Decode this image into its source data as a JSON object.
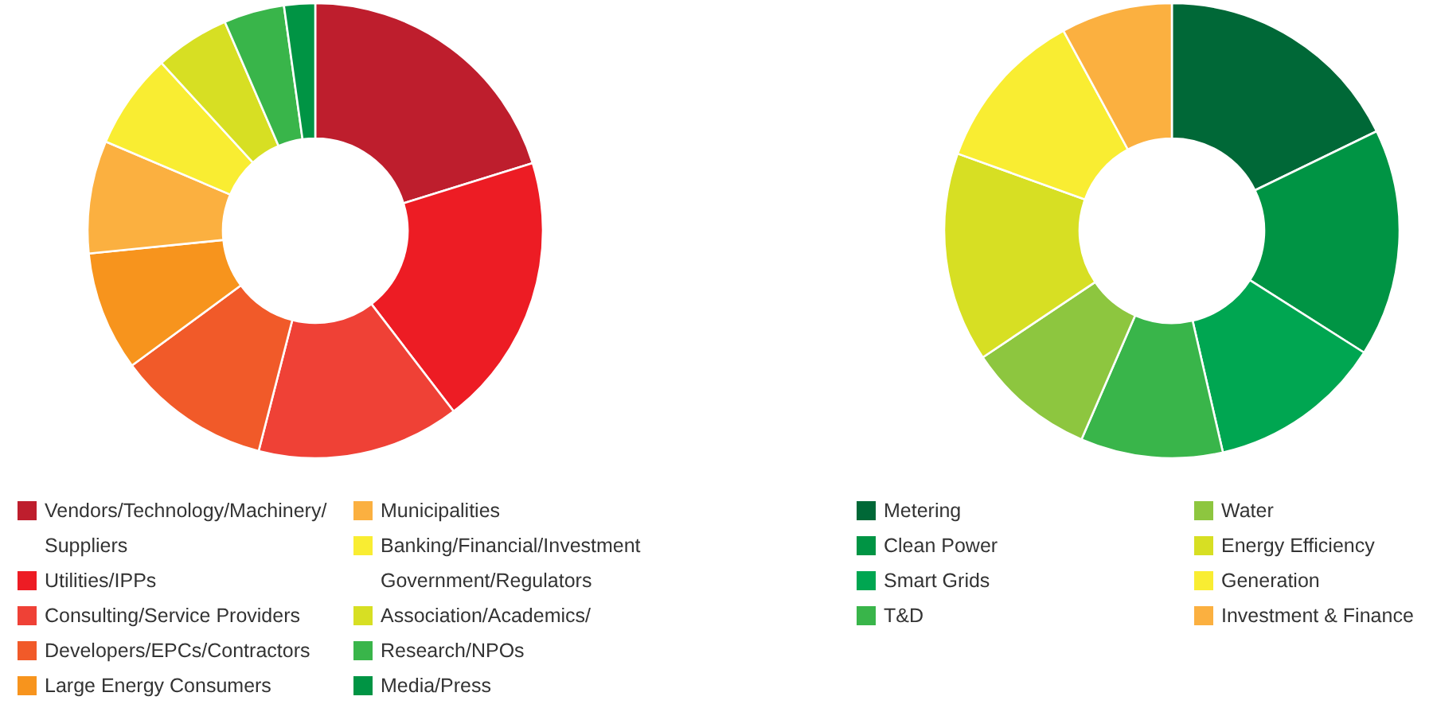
{
  "chart_data": [
    {
      "type": "donut",
      "categories": [
        "Vendors/Technology/Machinery/Suppliers",
        "Utilities/IPPs",
        "Consulting/Service Providers",
        "Developers/EPCs/Contractors",
        "Large Energy Consumers",
        "Municipalities",
        "Banking/Financial/Investment Government/Regulators",
        "Association/Academics/",
        "Research/NPOs",
        "Media/Press"
      ],
      "values": [
        20.2,
        19.4,
        14.4,
        10.9,
        8.5,
        8.0,
        6.8,
        5.3,
        4.3,
        2.2
      ],
      "colors": [
        "#be1e2d",
        "#ed1c24",
        "#ef4136",
        "#f15a29",
        "#f7941d",
        "#fbb040",
        "#f9ed32",
        "#d7df23",
        "#39b54a",
        "#009444"
      ],
      "legend": "bottom"
    },
    {
      "type": "donut",
      "categories": [
        "Metering",
        "Clean Power",
        "Smart Grids",
        "T&D",
        "Water",
        "Energy Efficiency",
        "Generation",
        "Investment & Finance"
      ],
      "values": [
        17.8,
        16.2,
        12.4,
        10.1,
        9.1,
        14.9,
        11.6,
        7.9
      ],
      "colors": [
        "#006837",
        "#009444",
        "#00a651",
        "#39b54a",
        "#8dc63f",
        "#d7df23",
        "#f9ed32",
        "#fbb040"
      ],
      "legend": "bottom"
    }
  ]
}
